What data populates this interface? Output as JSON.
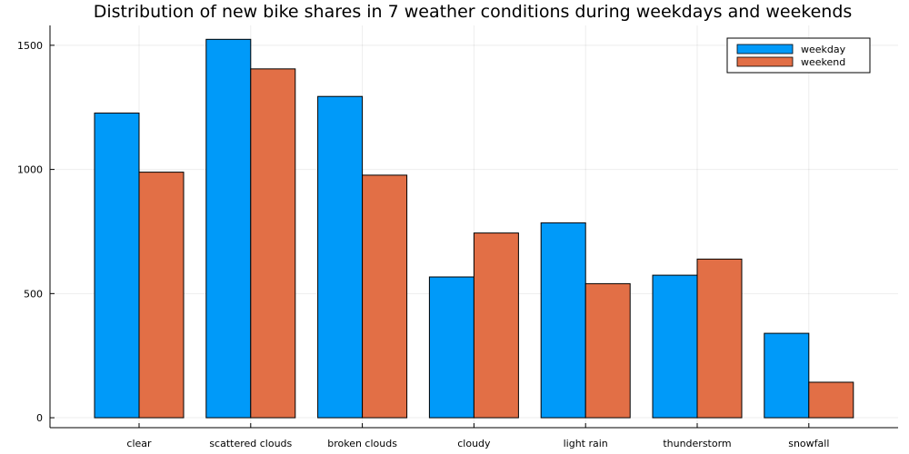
{
  "chart_data": {
    "type": "bar",
    "title": "Distribution of new bike shares in 7 weather conditions during weekdays and weekends",
    "xlabel": "",
    "ylabel": "",
    "categories": [
      "clear",
      "scattered clouds",
      "broken clouds",
      "cloudy",
      "light rain",
      "thunderstorm",
      "snowfall"
    ],
    "series": [
      {
        "name": "weekday",
        "color": "#009AF9",
        "values": [
          1227,
          1524,
          1294,
          567,
          785,
          574,
          340
        ]
      },
      {
        "name": "weekend",
        "color": "#E26F46",
        "values": [
          989,
          1405,
          977,
          744,
          540,
          639,
          143
        ]
      }
    ],
    "ylim": [
      -40,
      1580
    ],
    "yticks": [
      0,
      500,
      1000,
      1500
    ],
    "grid": true,
    "legend_position": "top-right"
  }
}
